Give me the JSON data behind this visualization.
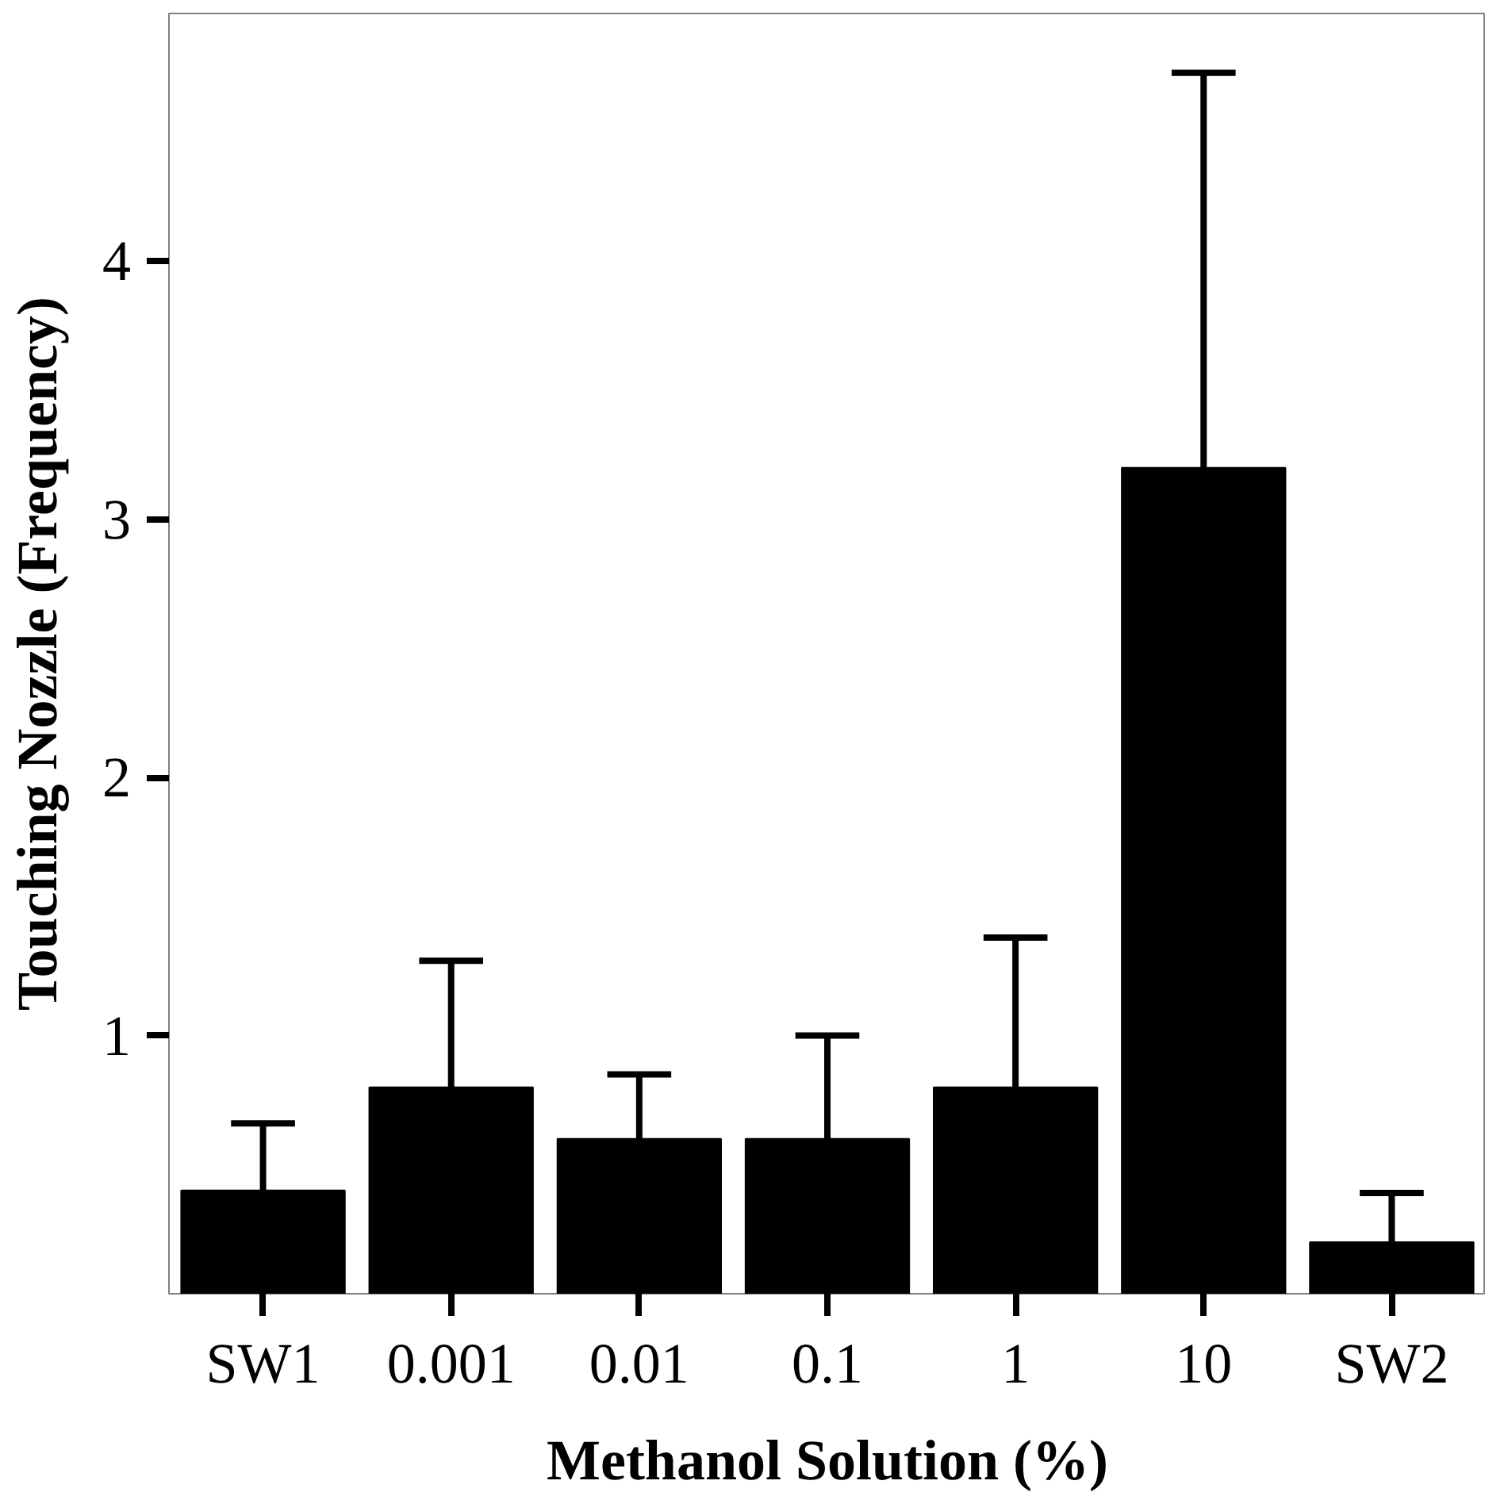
{
  "chart_data": {
    "type": "bar",
    "xlabel": "Methanol Solution (%)",
    "ylabel": "Touching Nozzle (Frequency)",
    "categories": [
      "SW1",
      "0.001",
      "0.01",
      "0.1",
      "1",
      "10",
      "SW2"
    ],
    "values": [
      0.4,
      0.8,
      0.6,
      0.6,
      0.8,
      3.2,
      0.2
    ],
    "errors": [
      [
        0.4,
        0.66
      ],
      [
        0.8,
        1.29
      ],
      [
        0.6,
        0.85
      ],
      [
        0.6,
        1.0
      ],
      [
        0.8,
        1.38
      ],
      [
        3.2,
        4.73
      ],
      [
        0.2,
        0.39
      ]
    ],
    "color": "#000000",
    "ylim": [
      0,
      4.96
    ],
    "yticks": [
      1,
      2,
      3,
      4
    ],
    "grid": false
  }
}
